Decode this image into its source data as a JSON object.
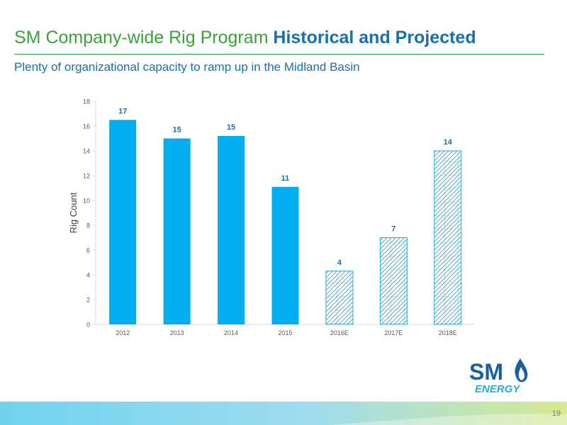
{
  "slide": {
    "title_part1": "SM Company-wide Rig Program ",
    "title_part2": "Historical and Projected",
    "subtitle": "Plenty of organizational capacity to ramp up in the Midland Basin",
    "page_number": "19",
    "colors": {
      "title_green": "#3aa23a",
      "title_blue": "#1a6fae",
      "bar_fill": "#00aeef",
      "hatch": "#2aa9d6"
    }
  },
  "logo": {
    "text_top": "SM",
    "text_bottom": "ENERGY"
  },
  "chart_data": {
    "type": "bar",
    "categories": [
      "2012",
      "2013",
      "2014",
      "2015",
      "2016E",
      "2017E",
      "2018E"
    ],
    "values": [
      16.5,
      15,
      15.2,
      11.1,
      4.3,
      7,
      14
    ],
    "data_labels": [
      "17",
      "15",
      "15",
      "11",
      "4",
      "7",
      "14"
    ],
    "projected": [
      false,
      false,
      false,
      false,
      true,
      true,
      true
    ],
    "ylabel": "Rig Count",
    "xlabel": "",
    "ylim": [
      0,
      18
    ],
    "yticks": [
      0,
      2,
      4,
      6,
      8,
      10,
      12,
      14,
      16,
      18
    ],
    "grid": false,
    "legend": "none"
  }
}
